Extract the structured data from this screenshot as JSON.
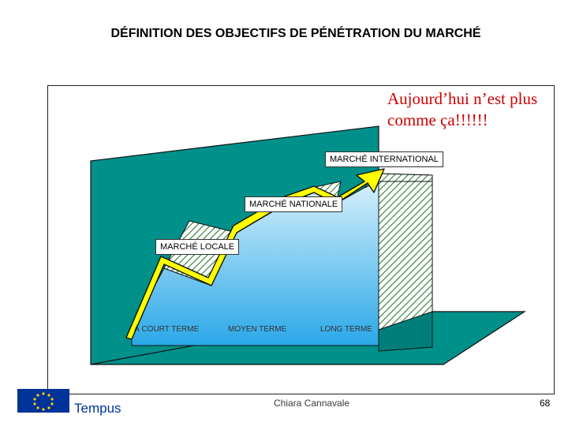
{
  "title": "DÉFINITION DES OBJECTIFS DE PÉNÉTRATION DU MARCHÉ",
  "note": "Aujourd’hui n’est plus comme ça!!!!!!",
  "levels": {
    "international": "MARCHÉ INTERNATIONAL",
    "national": "MARCHÉ NATIONALE",
    "local": "MARCHÉ LOCALE"
  },
  "terms": {
    "short": "À COURT TERME",
    "medium": "MOYEN TERME",
    "long": "LONG TERME"
  },
  "footer": {
    "logo_text": "Tempus",
    "author": "Chiara Cannavale",
    "page": "68"
  },
  "colors": {
    "floor": "#00908a",
    "wall": "#00908a",
    "area_top": "#dff3fc",
    "area_bottom": "#2aa8e8",
    "arrow": "#ffff00",
    "hatch": "#2e7d32",
    "logo_blue": "#003399",
    "logo_star": "#ffcc00"
  }
}
